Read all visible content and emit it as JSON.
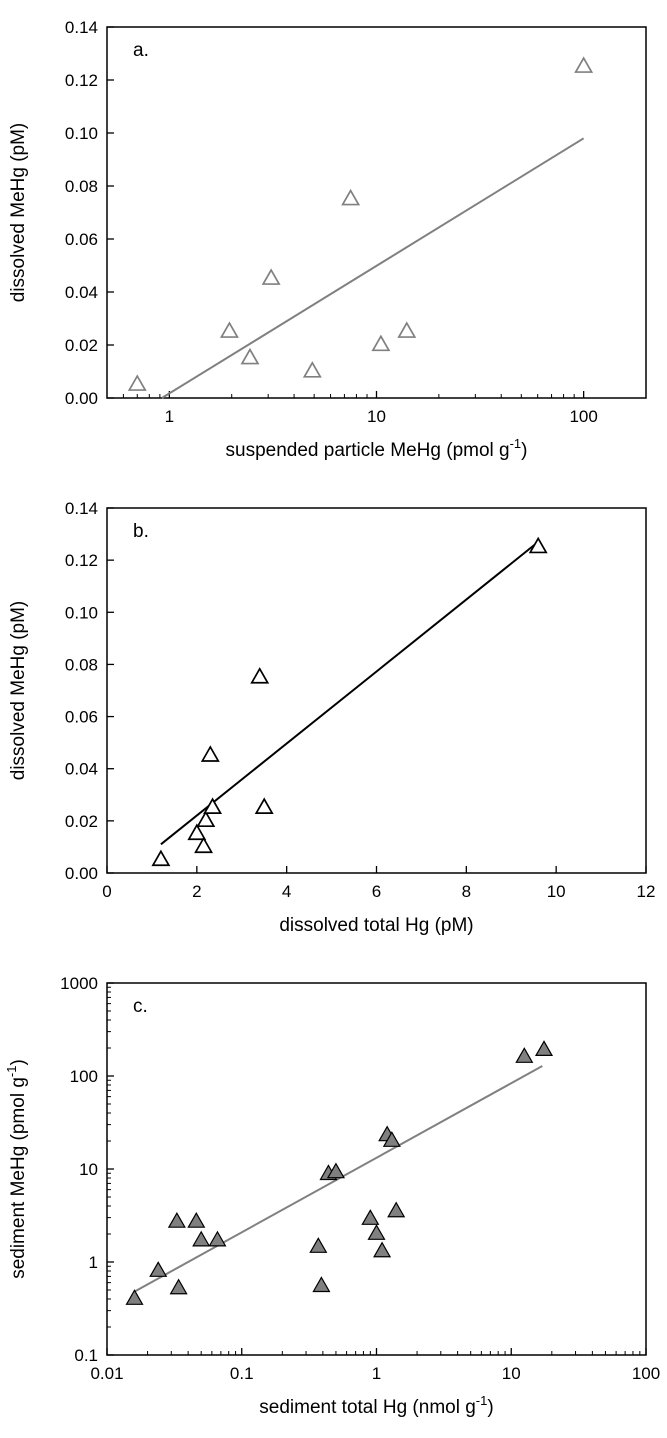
{
  "chart_data": [
    {
      "type": "scatter",
      "panel_label": "a.",
      "xlabel": "suspended particle MeHg (pmol g",
      "xlabel_sup": "-1",
      "xlabel_end": ")",
      "ylabel": "dissolved MeHg (pM)",
      "xscale": "log",
      "xlim": [
        0.5,
        200
      ],
      "ylim": [
        0,
        0.14
      ],
      "xticks": [
        1,
        10,
        100
      ],
      "xtick_labels": [
        "1",
        "10",
        "100"
      ],
      "yticks": [
        0,
        0.02,
        0.04,
        0.06,
        0.08,
        0.1,
        0.12,
        0.14
      ],
      "ytick_labels": [
        "0.00",
        "0.02",
        "0.04",
        "0.06",
        "0.08",
        "0.10",
        "0.12",
        "0.14"
      ],
      "marker": "open-triangle",
      "color": "#808080",
      "points": [
        {
          "x": 0.7,
          "y": 0.005
        },
        {
          "x": 1.95,
          "y": 0.025
        },
        {
          "x": 2.45,
          "y": 0.015
        },
        {
          "x": 3.1,
          "y": 0.045
        },
        {
          "x": 4.9,
          "y": 0.01
        },
        {
          "x": 7.5,
          "y": 0.075
        },
        {
          "x": 10.5,
          "y": 0.02
        },
        {
          "x": 14.0,
          "y": 0.025
        },
        {
          "x": 100,
          "y": 0.125
        }
      ],
      "fit_line": {
        "x": [
          0.92,
          100
        ],
        "y": [
          0.0,
          0.098
        ]
      },
      "grid": false
    },
    {
      "type": "scatter",
      "panel_label": "b.",
      "xlabel": "dissolved total Hg (pM)",
      "ylabel": "dissolved MeHg (pM)",
      "xscale": "linear",
      "xlim": [
        0,
        12
      ],
      "ylim": [
        0,
        0.14
      ],
      "xticks": [
        0,
        2,
        4,
        6,
        8,
        10,
        12
      ],
      "xtick_labels": [
        "0",
        "2",
        "4",
        "6",
        "8",
        "10",
        "12"
      ],
      "yticks": [
        0,
        0.02,
        0.04,
        0.06,
        0.08,
        0.1,
        0.12,
        0.14
      ],
      "ytick_labels": [
        "0.00",
        "0.02",
        "0.04",
        "0.06",
        "0.08",
        "0.10",
        "0.12",
        "0.14"
      ],
      "marker": "open-triangle",
      "color": "#000000",
      "points": [
        {
          "x": 1.2,
          "y": 0.005
        },
        {
          "x": 2.0,
          "y": 0.015
        },
        {
          "x": 2.15,
          "y": 0.01
        },
        {
          "x": 2.2,
          "y": 0.02
        },
        {
          "x": 2.3,
          "y": 0.045
        },
        {
          "x": 2.35,
          "y": 0.025
        },
        {
          "x": 3.4,
          "y": 0.075
        },
        {
          "x": 3.5,
          "y": 0.025
        },
        {
          "x": 9.6,
          "y": 0.125
        }
      ],
      "fit_line": {
        "x": [
          1.2,
          9.6
        ],
        "y": [
          0.011,
          0.127
        ]
      },
      "grid": false
    },
    {
      "type": "scatter",
      "panel_label": "c.",
      "xlabel": "sediment total Hg (nmol g",
      "xlabel_sup": "-1",
      "xlabel_end": ")",
      "ylabel": "sediment MeHg (pmol g",
      "ylabel_sup": "-1",
      "ylabel_end": ")",
      "xscale": "log",
      "yscale": "log",
      "xlim": [
        0.01,
        100
      ],
      "ylim": [
        0.1,
        1000
      ],
      "xticks": [
        0.01,
        0.1,
        1,
        10,
        100
      ],
      "xtick_labels": [
        "0.01",
        "0.1",
        "1",
        "10",
        "100"
      ],
      "yticks": [
        0.1,
        1,
        10,
        100,
        1000
      ],
      "ytick_labels": [
        "0.1",
        "1",
        "10",
        "100",
        "1000"
      ],
      "marker": "filled-triangle",
      "color": "#808080",
      "points": [
        {
          "x": 0.016,
          "y": 0.4
        },
        {
          "x": 0.024,
          "y": 0.8
        },
        {
          "x": 0.033,
          "y": 2.7
        },
        {
          "x": 0.034,
          "y": 0.52
        },
        {
          "x": 0.046,
          "y": 2.7
        },
        {
          "x": 0.05,
          "y": 1.7
        },
        {
          "x": 0.066,
          "y": 1.7
        },
        {
          "x": 0.37,
          "y": 1.45
        },
        {
          "x": 0.39,
          "y": 0.55
        },
        {
          "x": 0.44,
          "y": 8.8
        },
        {
          "x": 0.5,
          "y": 9.2
        },
        {
          "x": 0.9,
          "y": 2.9
        },
        {
          "x": 1.0,
          "y": 2.0
        },
        {
          "x": 1.1,
          "y": 1.3
        },
        {
          "x": 1.2,
          "y": 23
        },
        {
          "x": 1.3,
          "y": 20
        },
        {
          "x": 1.4,
          "y": 3.5
        },
        {
          "x": 12.5,
          "y": 160
        },
        {
          "x": 17.5,
          "y": 190
        }
      ],
      "fit_line": {
        "x": [
          0.016,
          17
        ],
        "y": [
          0.48,
          128
        ]
      },
      "grid": false
    }
  ]
}
